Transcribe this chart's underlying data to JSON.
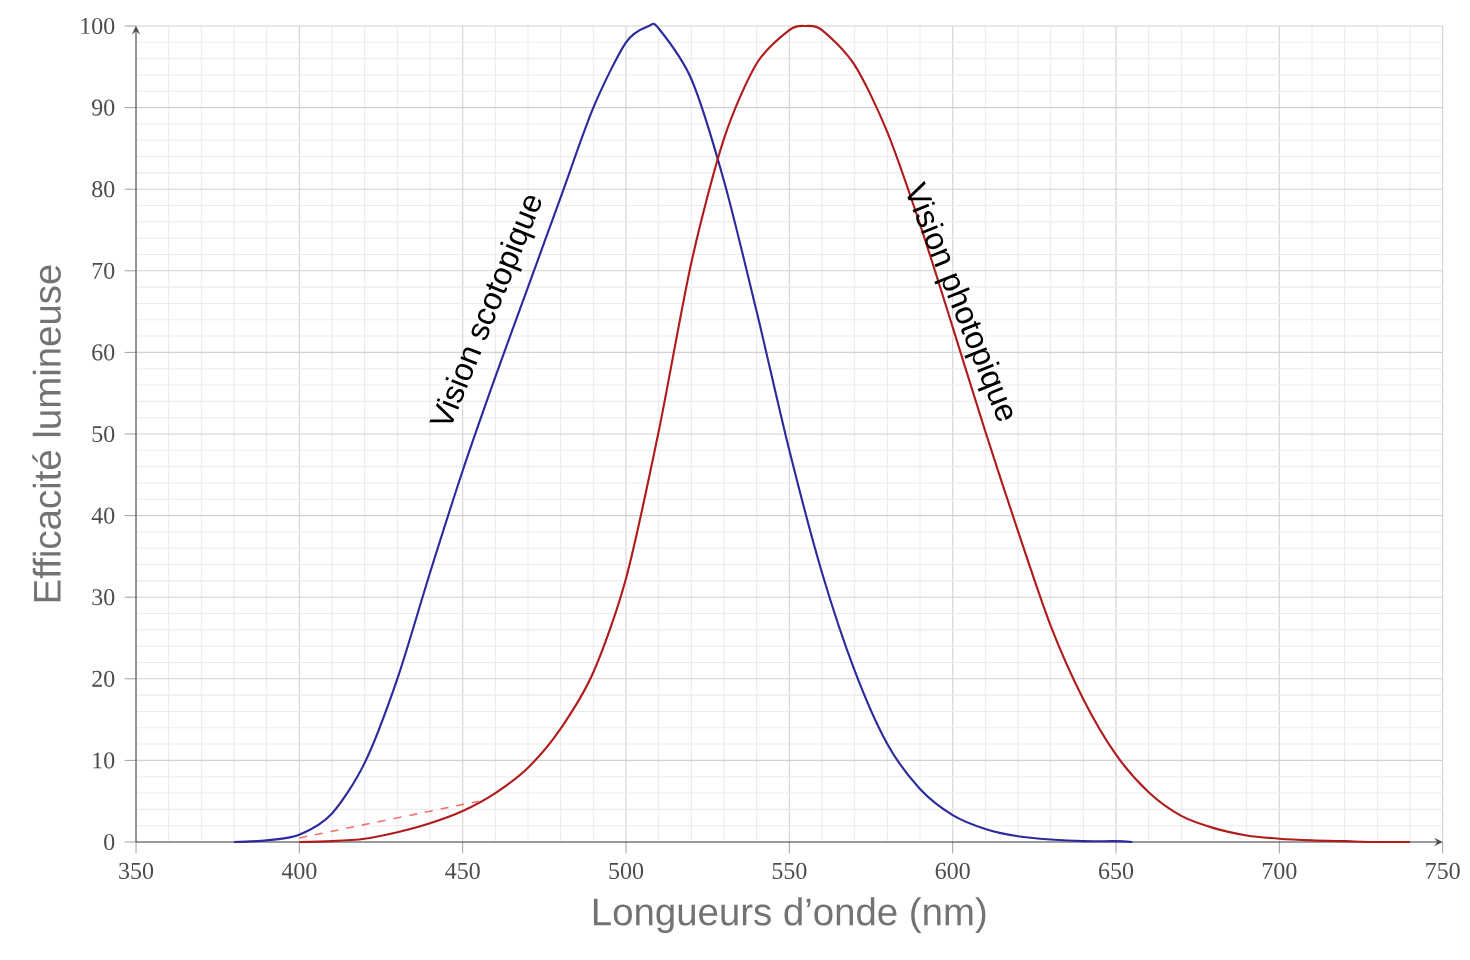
{
  "chart_data": {
    "type": "line",
    "xlabel": "Longueurs d’onde (nm)",
    "ylabel": "Efficacité lumineuse",
    "xlim": [
      350,
      750
    ],
    "ylim": [
      0,
      100
    ],
    "xticks": [
      350,
      400,
      450,
      500,
      550,
      600,
      650,
      700,
      750
    ],
    "yticks": [
      0,
      10,
      20,
      30,
      40,
      50,
      60,
      70,
      80,
      90,
      100
    ],
    "grid": true,
    "marker": "none",
    "line_style": "solid",
    "annotations": [
      "Vision scotopique",
      "Vision photopique"
    ],
    "series": [
      {
        "color": "#2b2b9e",
        "x": [
          380,
          390,
          400,
          410,
          420,
          430,
          440,
          450,
          460,
          470,
          480,
          490,
          500,
          507,
          510,
          520,
          530,
          540,
          550,
          560,
          570,
          580,
          590,
          600,
          610,
          620,
          630,
          640,
          650,
          655
        ],
        "values": [
          0,
          0.2,
          0.9,
          3.5,
          9.7,
          20,
          33,
          45.5,
          57,
          68,
          79,
          90,
          98,
          100,
          99.7,
          93.5,
          81,
          65,
          48,
          33,
          21,
          12,
          6.5,
          3.3,
          1.6,
          0.7,
          0.3,
          0.1,
          0.1,
          0
        ]
      },
      {
        "color": "#b01c1c",
        "x": [
          400,
          410,
          420,
          430,
          440,
          450,
          460,
          470,
          480,
          490,
          500,
          510,
          520,
          530,
          540,
          550,
          555,
          560,
          570,
          580,
          590,
          600,
          610,
          620,
          630,
          640,
          650,
          660,
          670,
          680,
          690,
          700,
          710,
          720,
          730,
          740
        ],
        "values": [
          0,
          0.1,
          0.4,
          1.2,
          2.3,
          3.8,
          6,
          9.1,
          13.9,
          20.8,
          32.3,
          50.3,
          71,
          86.2,
          95.4,
          99.5,
          100,
          99.5,
          95.2,
          87,
          75.7,
          63.1,
          50.3,
          38.1,
          26.5,
          17.5,
          10.7,
          6.1,
          3.2,
          1.7,
          0.8,
          0.4,
          0.2,
          0.1,
          0,
          0
        ]
      },
      {
        "color": "#f07070",
        "line_style": "dashed",
        "x": [
          400,
          455
        ],
        "values": [
          0.5,
          5
        ]
      }
    ]
  }
}
